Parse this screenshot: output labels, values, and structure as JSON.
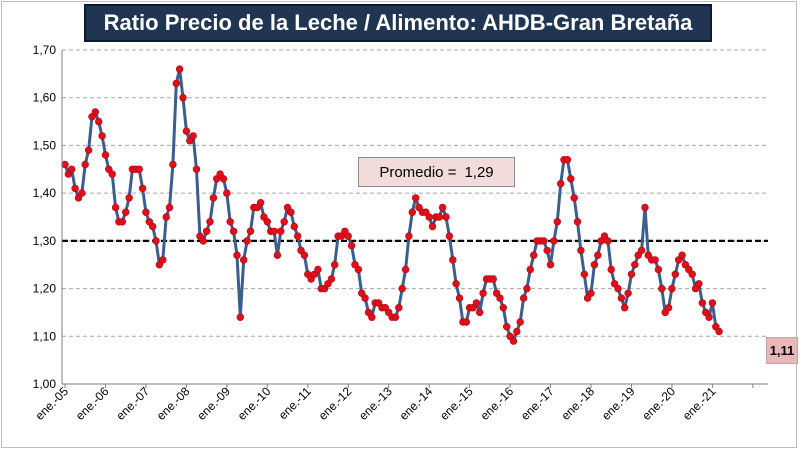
{
  "chart_data": {
    "type": "line",
    "title": "Ratio Precio de la  Leche / Alimento: AHDB-Gran Bretaña",
    "xlabel": "",
    "ylabel": "",
    "ylim": [
      1.0,
      1.7
    ],
    "yticks": [
      "1,00",
      "1,10",
      "1,20",
      "1,30",
      "1,40",
      "1,50",
      "1,60",
      "1,70"
    ],
    "ytick_values": [
      1.0,
      1.1,
      1.2,
      1.3,
      1.4,
      1.5,
      1.6,
      1.7
    ],
    "xtick_labels": [
      "ene.-05",
      "ene.-06",
      "ene.-07",
      "ene.-08",
      "ene.-09",
      "ene.-10",
      "ene.-11",
      "ene.-12",
      "ene.-13",
      "ene.-14",
      "ene.-15",
      "ene.-16",
      "ene.-17",
      "ene.-18",
      "ene.-19",
      "ene.-20",
      "ene.-21"
    ],
    "grid": true,
    "series": [
      {
        "name": "Ratio Precio de la Leche / Alimento",
        "color": "#3a5f8f",
        "marker_color": "#e0101a",
        "start": "ene.-05",
        "values": [
          1.46,
          1.44,
          1.45,
          1.41,
          1.39,
          1.4,
          1.46,
          1.49,
          1.56,
          1.57,
          1.55,
          1.52,
          1.48,
          1.45,
          1.44,
          1.37,
          1.34,
          1.34,
          1.36,
          1.39,
          1.45,
          1.45,
          1.45,
          1.41,
          1.36,
          1.34,
          1.33,
          1.3,
          1.25,
          1.26,
          1.35,
          1.37,
          1.46,
          1.63,
          1.66,
          1.6,
          1.53,
          1.51,
          1.52,
          1.45,
          1.31,
          1.3,
          1.32,
          1.34,
          1.39,
          1.43,
          1.44,
          1.43,
          1.4,
          1.34,
          1.32,
          1.27,
          1.14,
          1.26,
          1.3,
          1.32,
          1.37,
          1.37,
          1.38,
          1.35,
          1.34,
          1.32,
          1.32,
          1.27,
          1.32,
          1.34,
          1.37,
          1.36,
          1.33,
          1.31,
          1.28,
          1.27,
          1.23,
          1.22,
          1.23,
          1.24,
          1.2,
          1.2,
          1.21,
          1.22,
          1.25,
          1.31,
          1.31,
          1.32,
          1.31,
          1.29,
          1.25,
          1.24,
          1.19,
          1.18,
          1.15,
          1.14,
          1.17,
          1.17,
          1.16,
          1.16,
          1.15,
          1.14,
          1.14,
          1.16,
          1.2,
          1.24,
          1.31,
          1.36,
          1.39,
          1.37,
          1.36,
          1.36,
          1.35,
          1.33,
          1.35,
          1.35,
          1.37,
          1.35,
          1.31,
          1.26,
          1.21,
          1.18,
          1.13,
          1.13,
          1.16,
          1.16,
          1.17,
          1.15,
          1.19,
          1.22,
          1.22,
          1.22,
          1.19,
          1.18,
          1.16,
          1.12,
          1.1,
          1.09,
          1.11,
          1.13,
          1.18,
          1.2,
          1.24,
          1.27,
          1.3,
          1.3,
          1.3,
          1.28,
          1.25,
          1.3,
          1.34,
          1.42,
          1.47,
          1.47,
          1.43,
          1.39,
          1.34,
          1.28,
          1.23,
          1.18,
          1.19,
          1.25,
          1.27,
          1.3,
          1.31,
          1.3,
          1.24,
          1.21,
          1.2,
          1.18,
          1.16,
          1.19,
          1.23,
          1.25,
          1.27,
          1.28,
          1.37,
          1.27,
          1.26,
          1.26,
          1.24,
          1.2,
          1.15,
          1.16,
          1.2,
          1.23,
          1.26,
          1.27,
          1.25,
          1.24,
          1.23,
          1.2,
          1.21,
          1.17,
          1.15,
          1.14,
          1.17,
          1.12,
          1.11
        ]
      },
      {
        "name": "Promedio",
        "value": 1.3,
        "style": "dashed",
        "color": "#000000"
      }
    ],
    "annotations": {
      "average_label": "Promedio =",
      "average_value": "1,29",
      "last_value": "1,11"
    }
  },
  "colors": {
    "title_bg": "#1f3552",
    "line": "#3a5f8f",
    "marker": "#e0101a",
    "grid": "#a6a6a6",
    "avg_box_bg": "#f2dcdb",
    "last_box_bg": "#e6b9b8"
  }
}
